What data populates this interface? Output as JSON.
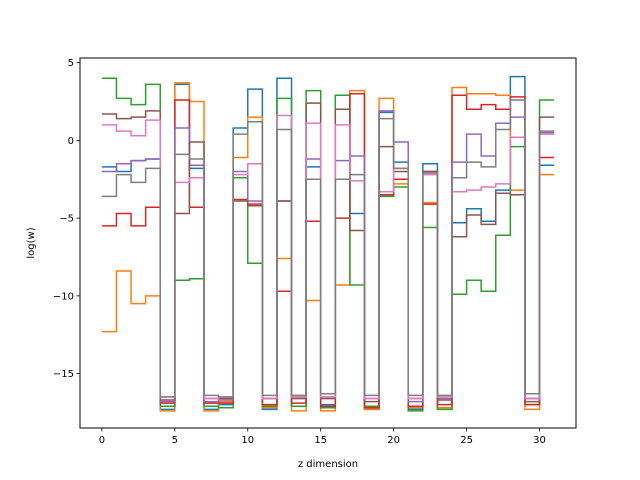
{
  "chart_data": {
    "type": "line",
    "step": "post",
    "title": "",
    "xlabel": "z dimension",
    "ylabel": "log(w)",
    "xlim": [
      -1.5,
      32.5
    ],
    "ylim": [
      -18.5,
      5.3
    ],
    "xticks": [
      0,
      5,
      10,
      15,
      20,
      25,
      30
    ],
    "yticks": [
      5,
      0,
      -5,
      -10,
      -15
    ],
    "ytick_labels": [
      "5",
      "0",
      "−5",
      "−10",
      "−15"
    ],
    "grid": false,
    "legend": "none",
    "series": [
      {
        "color": "#1f77b4",
        "values": [
          -1.7,
          -2.0,
          -1.3,
          -1.2,
          -17.3,
          3.6,
          -1.8,
          -17.3,
          -17.0,
          0.8,
          3.3,
          -17.3,
          4.0,
          -17.1,
          -1.7,
          -17.0,
          -2.5,
          -4.7,
          -17.3,
          1.8,
          -1.4,
          -17.3,
          -1.5,
          -17.2,
          -5.3,
          -4.4,
          -5.2,
          -3.2,
          4.1,
          -16.6,
          -1.6
        ]
      },
      {
        "color": "#ff7f0e",
        "values": [
          -12.3,
          -8.4,
          -10.5,
          -10.0,
          -17.4,
          3.7,
          2.5,
          -17.4,
          -16.8,
          -1.1,
          1.5,
          -17.2,
          -7.6,
          -17.4,
          -10.3,
          -17.4,
          -9.3,
          3.2,
          -17.3,
          2.7,
          -2.8,
          -17.2,
          -4.0,
          -17.2,
          3.4,
          3.0,
          3.0,
          2.9,
          -3.2,
          -17.3,
          -2.2
        ]
      },
      {
        "color": "#2ca02c",
        "values": [
          4.0,
          2.7,
          2.3,
          3.6,
          -17.1,
          -9.0,
          -8.9,
          -17.1,
          -17.2,
          -2.4,
          -7.9,
          -17.1,
          2.7,
          -17.1,
          3.2,
          -17.2,
          2.9,
          -9.3,
          -17.1,
          -3.6,
          -3.0,
          -17.4,
          -5.6,
          -17.3,
          -9.9,
          -9.0,
          -9.7,
          -6.1,
          -0.4,
          -17.0,
          2.6
        ]
      },
      {
        "color": "#d62728",
        "values": [
          -5.5,
          -4.7,
          -5.5,
          -4.3,
          -16.9,
          2.6,
          -4.3,
          -16.9,
          -16.9,
          -3.8,
          -4.1,
          -17.0,
          -9.7,
          -16.9,
          -5.2,
          -17.1,
          -5.0,
          3.0,
          -17.2,
          -3.5,
          -2.5,
          -17.1,
          -4.1,
          -17.0,
          2.9,
          2.0,
          2.3,
          2.0,
          2.8,
          -17.0,
          -1.1
        ]
      },
      {
        "color": "#9467bd",
        "values": [
          -2.0,
          -1.5,
          -1.3,
          -1.2,
          -16.8,
          0.8,
          -1.6,
          -16.8,
          -16.7,
          -2.0,
          -3.9,
          -16.6,
          -3.9,
          -16.6,
          -1.2,
          -16.6,
          -1.3,
          -1.0,
          -16.6,
          1.9,
          -0.1,
          -16.8,
          -2.0,
          -16.6,
          -1.4,
          0.4,
          -1.0,
          1.1,
          1.5,
          -16.6,
          0.5
        ]
      },
      {
        "color": "#8c564b",
        "values": [
          1.7,
          1.4,
          1.5,
          1.9,
          -16.7,
          -4.7,
          -0.1,
          -16.6,
          -16.6,
          -3.9,
          -4.2,
          -16.6,
          -3.9,
          -16.6,
          2.4,
          -16.6,
          2.0,
          -5.8,
          -16.8,
          -0.4,
          -2.0,
          -16.6,
          -2.0,
          -16.7,
          -6.2,
          -4.8,
          -5.4,
          -3.4,
          -3.5,
          -16.8,
          1.5
        ]
      },
      {
        "color": "#e377c2",
        "values": [
          1.0,
          0.6,
          0.3,
          1.3,
          -16.5,
          -2.7,
          -2.4,
          -16.6,
          -16.5,
          -2.2,
          -1.5,
          -16.6,
          1.6,
          -16.5,
          1.1,
          -16.5,
          1.0,
          -2.6,
          -16.6,
          -3.3,
          -1.8,
          -16.6,
          -2.2,
          -16.5,
          -3.3,
          -3.2,
          -3.0,
          -2.8,
          0.2,
          -16.6,
          0.4
        ]
      },
      {
        "color": "#7f7f7f",
        "values": [
          -3.6,
          -2.2,
          -2.7,
          -1.8,
          -16.5,
          -0.9,
          -1.2,
          -16.4,
          -16.5,
          0.4,
          1.2,
          -16.4,
          0.7,
          -16.4,
          -2.5,
          -16.3,
          -2.5,
          -2.2,
          -16.4,
          1.4,
          -1.8,
          -16.4,
          -2.1,
          -16.4,
          -2.4,
          -1.4,
          -1.7,
          0.7,
          2.6,
          -16.3,
          0.6
        ]
      }
    ]
  }
}
